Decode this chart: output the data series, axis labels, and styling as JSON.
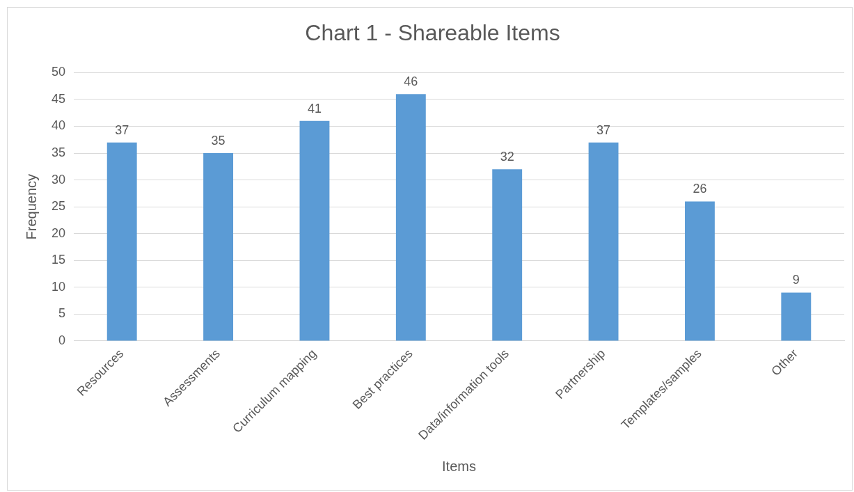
{
  "chart_data": {
    "type": "bar",
    "title": "Chart 1 - Shareable Items",
    "xlabel": "Items",
    "ylabel": "Frequency",
    "categories": [
      "Resources",
      "Assessments",
      "Curriculum mapping",
      "Best practices",
      "Data/information tools",
      "Partnership",
      "Templates/samples",
      "Other"
    ],
    "values": [
      37,
      35,
      41,
      46,
      32,
      37,
      26,
      9
    ],
    "color": "#5b9bd5",
    "ylim": [
      0,
      50
    ],
    "yticks": [
      0,
      5,
      10,
      15,
      20,
      25,
      30,
      35,
      40,
      45,
      50
    ],
    "grid": "y",
    "data_labels": true,
    "legend": false
  }
}
